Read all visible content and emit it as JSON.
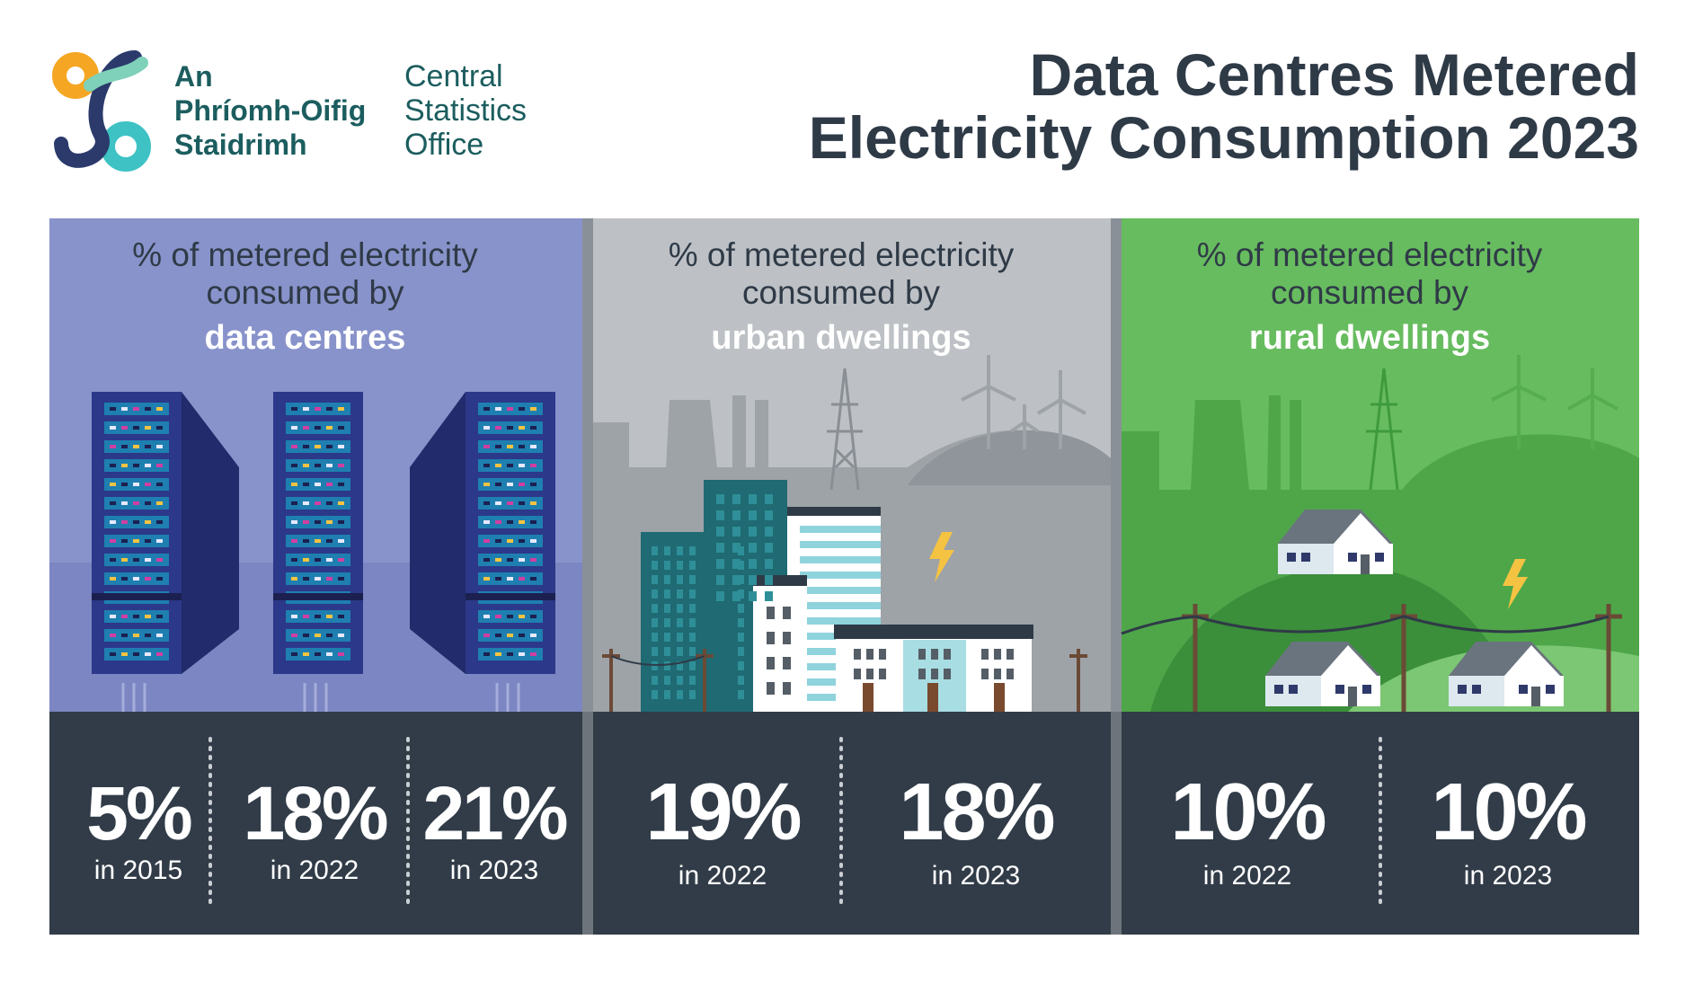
{
  "header": {
    "logo_irish": [
      "An",
      "Phríomh-Oifig",
      "Staidrimh"
    ],
    "logo_english": [
      "Central",
      "Statistics",
      "Office"
    ],
    "title": [
      "Data Centres Metered",
      "Electricity Consumption 2023"
    ]
  },
  "panels": [
    {
      "caption": [
        "% of metered electricity",
        "consumed by"
      ],
      "highlight": "data centres",
      "stats": [
        {
          "value": "5%",
          "year": "in 2015"
        },
        {
          "value": "18%",
          "year": "in 2022"
        },
        {
          "value": "21%",
          "year": "in 2023"
        }
      ]
    },
    {
      "caption": [
        "% of metered electricity",
        "consumed by"
      ],
      "highlight": "urban dwellings",
      "stats": [
        {
          "value": "19%",
          "year": "in 2022"
        },
        {
          "value": "18%",
          "year": "in 2023"
        }
      ]
    },
    {
      "caption": [
        "% of metered electricity",
        "consumed by"
      ],
      "highlight": "rural dwellings",
      "stats": [
        {
          "value": "10%",
          "year": "in 2022"
        },
        {
          "value": "10%",
          "year": "in 2023"
        }
      ]
    }
  ]
}
